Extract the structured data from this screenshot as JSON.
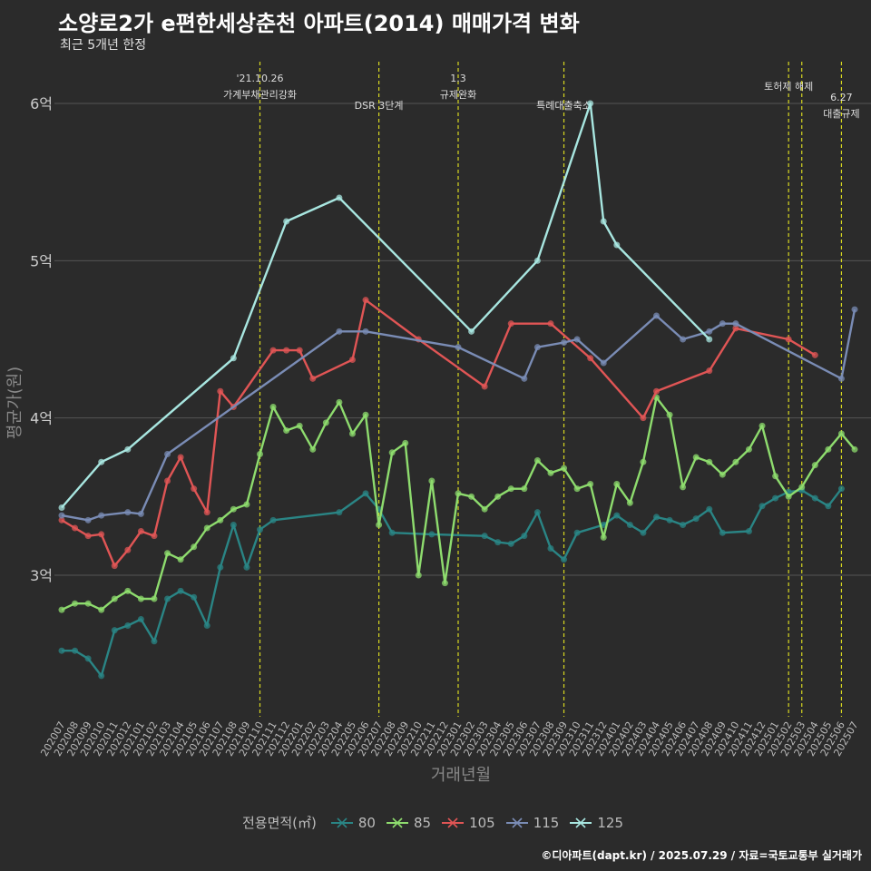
{
  "header": {
    "title": "소양로2가 e편한세상춘천 아파트(2014) 매매가격 변화",
    "subtitle": "최근 5개년 한정"
  },
  "caption": "©디아파트(dapt.kr) / 2025.07.29 / 자료=국토교통부 실거래가",
  "legend": {
    "title": "전용면적(㎡)"
  },
  "colors": {
    "background": "#2b2b2b",
    "grid": "#555555",
    "event_line": "#d8d820",
    "s80": "#2a8585",
    "s85": "#8edc6e",
    "s105": "#e05555",
    "s115": "#7a8cb5",
    "s125": "#a8e6e0"
  },
  "chart_data": {
    "type": "line",
    "title": "소양로2가 e편한세상춘천 아파트(2014) 매매가격 변화",
    "xlabel": "거래년월",
    "ylabel": "평균가(원)",
    "ylim": [
      2.1,
      6.3
    ],
    "yticks": [
      3,
      4,
      5,
      6
    ],
    "yticklabels": [
      "3억",
      "4억",
      "5억",
      "6억"
    ],
    "grid": true,
    "legend_position": "bottom",
    "x": [
      "202007",
      "202008",
      "202009",
      "202010",
      "202011",
      "202012",
      "202101",
      "202102",
      "202103",
      "202104",
      "202105",
      "202106",
      "202107",
      "202108",
      "202109",
      "202110",
      "202111",
      "202112",
      "202201",
      "202202",
      "202203",
      "202204",
      "202205",
      "202206",
      "202207",
      "202208",
      "202209",
      "202210",
      "202211",
      "202212",
      "202301",
      "202302",
      "202303",
      "202304",
      "202305",
      "202306",
      "202307",
      "202308",
      "202309",
      "202310",
      "202311",
      "202312",
      "202401",
      "202402",
      "202403",
      "202404",
      "202405",
      "202406",
      "202407",
      "202408",
      "202409",
      "202410",
      "202411",
      "202412",
      "202501",
      "202502",
      "202503",
      "202504",
      "202505",
      "202506",
      "202507"
    ],
    "events": [
      {
        "x": "202110",
        "label": "'21.10.26\n가계부채관리강화"
      },
      {
        "x": "202207",
        "label": "DSR 3단계"
      },
      {
        "x": "202301",
        "label": "1.3\n규제완화"
      },
      {
        "x": "202309",
        "label": "특례대출축소"
      },
      {
        "x": "202502",
        "label": "토허제 해제"
      },
      {
        "x": "202503",
        "label": ""
      },
      {
        "x": "202506",
        "label": "6.27\n대출규제"
      }
    ],
    "series": [
      {
        "name": "80",
        "points": [
          [
            "202007",
            2.52
          ],
          [
            "202008",
            2.52
          ],
          [
            "202009",
            2.47
          ],
          [
            "202010",
            2.36
          ],
          [
            "202011",
            2.65
          ],
          [
            "202012",
            2.68
          ],
          [
            "202101",
            2.72
          ],
          [
            "202102",
            2.58
          ],
          [
            "202103",
            2.85
          ],
          [
            "202104",
            2.9
          ],
          [
            "202105",
            2.86
          ],
          [
            "202106",
            2.68
          ],
          [
            "202107",
            3.05
          ],
          [
            "202108",
            3.32
          ],
          [
            "202109",
            3.05
          ],
          [
            "202110",
            3.29
          ],
          [
            "202111",
            3.35
          ],
          [
            "202204",
            3.4
          ],
          [
            "202206",
            3.52
          ],
          [
            "202207",
            3.42
          ],
          [
            "202208",
            3.27
          ],
          [
            "202211",
            3.26
          ],
          [
            "202303",
            3.25
          ],
          [
            "202304",
            3.21
          ],
          [
            "202305",
            3.2
          ],
          [
            "202306",
            3.25
          ],
          [
            "202307",
            3.4
          ],
          [
            "202308",
            3.17
          ],
          [
            "202309",
            3.1
          ],
          [
            "202310",
            3.27
          ],
          [
            "202312",
            3.32
          ],
          [
            "202401",
            3.38
          ],
          [
            "202402",
            3.32
          ],
          [
            "202403",
            3.27
          ],
          [
            "202404",
            3.37
          ],
          [
            "202405",
            3.35
          ],
          [
            "202406",
            3.32
          ],
          [
            "202407",
            3.36
          ],
          [
            "202408",
            3.42
          ],
          [
            "202409",
            3.27
          ],
          [
            "202411",
            3.28
          ],
          [
            "202412",
            3.44
          ],
          [
            "202501",
            3.49
          ],
          [
            "202502",
            3.53
          ],
          [
            "202503",
            3.54
          ],
          [
            "202504",
            3.49
          ],
          [
            "202505",
            3.44
          ],
          [
            "202506",
            3.55
          ]
        ]
      },
      {
        "name": "85",
        "points": [
          [
            "202007",
            2.78
          ],
          [
            "202008",
            2.82
          ],
          [
            "202009",
            2.82
          ],
          [
            "202010",
            2.78
          ],
          [
            "202011",
            2.85
          ],
          [
            "202012",
            2.9
          ],
          [
            "202101",
            2.85
          ],
          [
            "202102",
            2.85
          ],
          [
            "202103",
            3.14
          ],
          [
            "202104",
            3.1
          ],
          [
            "202105",
            3.18
          ],
          [
            "202106",
            3.3
          ],
          [
            "202107",
            3.35
          ],
          [
            "202108",
            3.42
          ],
          [
            "202109",
            3.45
          ],
          [
            "202110",
            3.77
          ],
          [
            "202111",
            4.07
          ],
          [
            "202112",
            3.92
          ],
          [
            "202201",
            3.95
          ],
          [
            "202202",
            3.8
          ],
          [
            "202203",
            3.97
          ],
          [
            "202204",
            4.1
          ],
          [
            "202205",
            3.9
          ],
          [
            "202206",
            4.02
          ],
          [
            "202207",
            3.32
          ],
          [
            "202208",
            3.78
          ],
          [
            "202209",
            3.84
          ],
          [
            "202210",
            3.0
          ],
          [
            "202211",
            3.6
          ],
          [
            "202212",
            2.95
          ],
          [
            "202301",
            3.52
          ],
          [
            "202302",
            3.5
          ],
          [
            "202303",
            3.42
          ],
          [
            "202304",
            3.5
          ],
          [
            "202305",
            3.55
          ],
          [
            "202306",
            3.55
          ],
          [
            "202307",
            3.73
          ],
          [
            "202308",
            3.65
          ],
          [
            "202309",
            3.68
          ],
          [
            "202310",
            3.55
          ],
          [
            "202311",
            3.58
          ],
          [
            "202312",
            3.24
          ],
          [
            "202401",
            3.58
          ],
          [
            "202402",
            3.46
          ],
          [
            "202403",
            3.72
          ],
          [
            "202404",
            4.13
          ],
          [
            "202405",
            4.02
          ],
          [
            "202406",
            3.56
          ],
          [
            "202407",
            3.75
          ],
          [
            "202408",
            3.72
          ],
          [
            "202409",
            3.64
          ],
          [
            "202410",
            3.72
          ],
          [
            "202411",
            3.8
          ],
          [
            "202412",
            3.95
          ],
          [
            "202501",
            3.63
          ],
          [
            "202502",
            3.5
          ],
          [
            "202503",
            3.56
          ],
          [
            "202504",
            3.7
          ],
          [
            "202505",
            3.8
          ],
          [
            "202506",
            3.9
          ],
          [
            "202507",
            3.8
          ]
        ]
      },
      {
        "name": "105",
        "points": [
          [
            "202007",
            3.35
          ],
          [
            "202008",
            3.3
          ],
          [
            "202009",
            3.25
          ],
          [
            "202010",
            3.26
          ],
          [
            "202011",
            3.06
          ],
          [
            "202012",
            3.16
          ],
          [
            "202101",
            3.28
          ],
          [
            "202102",
            3.25
          ],
          [
            "202103",
            3.6
          ],
          [
            "202104",
            3.75
          ],
          [
            "202105",
            3.55
          ],
          [
            "202106",
            3.4
          ],
          [
            "202107",
            4.17
          ],
          [
            "202108",
            4.07
          ],
          [
            "202111",
            4.43
          ],
          [
            "202112",
            4.43
          ],
          [
            "202201",
            4.43
          ],
          [
            "202202",
            4.25
          ],
          [
            "202205",
            4.37
          ],
          [
            "202206",
            4.75
          ],
          [
            "202210",
            4.5
          ],
          [
            "202303",
            4.2
          ],
          [
            "202305",
            4.6
          ],
          [
            "202308",
            4.6
          ],
          [
            "202311",
            4.38
          ],
          [
            "202403",
            4.0
          ],
          [
            "202404",
            4.17
          ],
          [
            "202408",
            4.3
          ],
          [
            "202410",
            4.57
          ],
          [
            "202502",
            4.5
          ],
          [
            "202504",
            4.4
          ]
        ]
      },
      {
        "name": "115",
        "points": [
          [
            "202007",
            3.38
          ],
          [
            "202009",
            3.35
          ],
          [
            "202010",
            3.38
          ],
          [
            "202012",
            3.4
          ],
          [
            "202101",
            3.39
          ],
          [
            "202103",
            3.77
          ],
          [
            "202204",
            4.55
          ],
          [
            "202206",
            4.55
          ],
          [
            "202301",
            4.45
          ],
          [
            "202306",
            4.25
          ],
          [
            "202307",
            4.45
          ],
          [
            "202309",
            4.48
          ],
          [
            "202310",
            4.5
          ],
          [
            "202312",
            4.35
          ],
          [
            "202404",
            4.65
          ],
          [
            "202406",
            4.5
          ],
          [
            "202408",
            4.55
          ],
          [
            "202409",
            4.6
          ],
          [
            "202410",
            4.6
          ],
          [
            "202506",
            4.25
          ],
          [
            "202507",
            4.69
          ]
        ]
      },
      {
        "name": "125",
        "points": [
          [
            "202007",
            3.43
          ],
          [
            "202010",
            3.72
          ],
          [
            "202012",
            3.8
          ],
          [
            "202108",
            4.38
          ],
          [
            "202112",
            5.25
          ],
          [
            "202204",
            5.4
          ],
          [
            "202302",
            4.55
          ],
          [
            "202307",
            5.0
          ],
          [
            "202311",
            6.0
          ],
          [
            "202312",
            5.25
          ],
          [
            "202401",
            5.1
          ],
          [
            "202408",
            4.5
          ]
        ]
      }
    ]
  }
}
